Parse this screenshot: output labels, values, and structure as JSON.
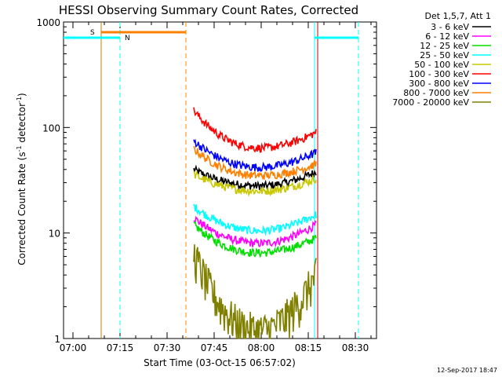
{
  "chart_data": {
    "type": "line",
    "title": "HESSI Observing Summary Count Rates, Corrected",
    "xlabel": "Start Time (03-Oct-15 06:57:02)",
    "ylabel": "Corrected Count Rate (s⁻¹ detector⁻¹)",
    "ylabel_main": "Corrected Count Rate (s",
    "ylabel_sup1": "-1",
    "ylabel_mid": " detector",
    "ylabel_sup2": "-1",
    "ylabel_end": ")",
    "yscale": "log",
    "ylim": [
      1,
      1000
    ],
    "xlim_minutes": [
      6.97,
      60.6
    ],
    "xticks": [
      {
        "label": "07:00",
        "m": 0
      },
      {
        "label": "07:15",
        "m": 15
      },
      {
        "label": "07:30",
        "m": 30
      },
      {
        "label": "07:45",
        "m": 45
      },
      {
        "label": "08:00",
        "m": 60
      },
      {
        "label": "08:15",
        "m": 75
      },
      {
        "label": "08:30",
        "m": 90
      }
    ],
    "yticks": [
      {
        "label": "1",
        "v": 1
      },
      {
        "label": "10",
        "v": 10
      },
      {
        "label": "100",
        "v": 100
      },
      {
        "label": "1000",
        "v": 1000
      }
    ],
    "legend_title": "Det 1,5,7, Att 1",
    "legend_position": "right",
    "data_window": [
      "07:38",
      "08:17"
    ],
    "series": [
      {
        "name": "3 - 6 keV",
        "color": "#000000",
        "start": 40,
        "min": 28,
        "end": 38
      },
      {
        "name": "6 - 12 keV",
        "color": "#ff00ff",
        "start": 14,
        "min": 8,
        "end": 12
      },
      {
        "name": "12 - 25 keV",
        "color": "#00e000",
        "start": 12,
        "min": 6.5,
        "end": 9
      },
      {
        "name": "25 - 50 keV",
        "color": "#00ffff",
        "start": 18,
        "min": 10.5,
        "end": 15
      },
      {
        "name": "50 - 100 keV",
        "color": "#c8c800",
        "start": 36,
        "min": 25,
        "end": 33
      },
      {
        "name": "100 - 300 keV",
        "color": "#ff0000",
        "start": 145,
        "min": 64,
        "end": 90
      },
      {
        "name": "300 - 800 keV",
        "color": "#0000ff",
        "start": 75,
        "min": 42,
        "end": 58
      },
      {
        "name": "800 - 7000 keV",
        "color": "#ff8000",
        "start": 63,
        "min": 35,
        "end": 45
      },
      {
        "name": "7000 - 20000 keV",
        "color": "#808000",
        "start": 6.5,
        "min": 1.2,
        "end": 4
      }
    ],
    "flags": [
      {
        "label": "S",
        "color": "#ff8000",
        "start": "07:09",
        "end": "07:36"
      },
      {
        "label": "N",
        "color": "#00ffff",
        "start": "06:57",
        "end": "07:15",
        "second_start": "08:17",
        "second_end": "08:31"
      }
    ],
    "vertical_markers": [
      {
        "time": "07:09",
        "color": "#c08000",
        "style": "solid"
      },
      {
        "time": "07:15",
        "color": "#00ffff",
        "style": "dashed"
      },
      {
        "time": "07:36",
        "color": "#ff8000",
        "style": "dashed"
      },
      {
        "time": "08:17",
        "color": "#00ffff",
        "style": "solid"
      },
      {
        "time": "08:18",
        "color": "#c00000",
        "style": "solid"
      },
      {
        "time": "08:31",
        "color": "#00ffff",
        "style": "dashed"
      }
    ]
  },
  "timestamp": "12-Sep-2017 18:47"
}
